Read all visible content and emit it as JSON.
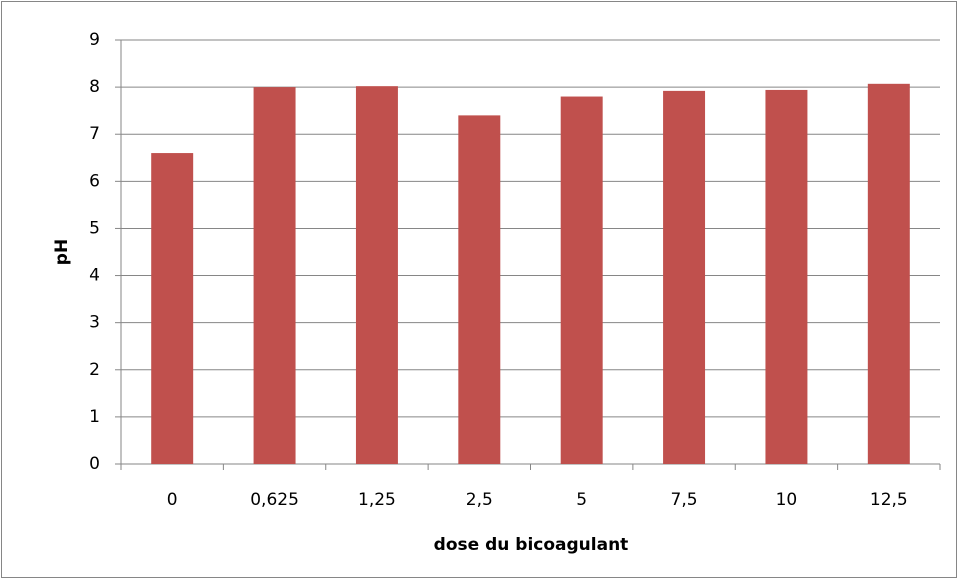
{
  "chart_data": {
    "type": "bar",
    "categories": [
      "0",
      "0,625",
      "1,25",
      "2,5",
      "5",
      "7,5",
      "10",
      "12,5"
    ],
    "values": [
      6.6,
      8.0,
      8.02,
      7.4,
      7.8,
      7.92,
      7.94,
      8.07
    ],
    "color": "#c0504d",
    "xlabel": "dose du bicoagulant",
    "ylabel": "pH",
    "ylim": [
      0,
      9
    ],
    "yticks": [
      0,
      1,
      2,
      3,
      4,
      5,
      6,
      7,
      8,
      9
    ],
    "grid": true
  }
}
